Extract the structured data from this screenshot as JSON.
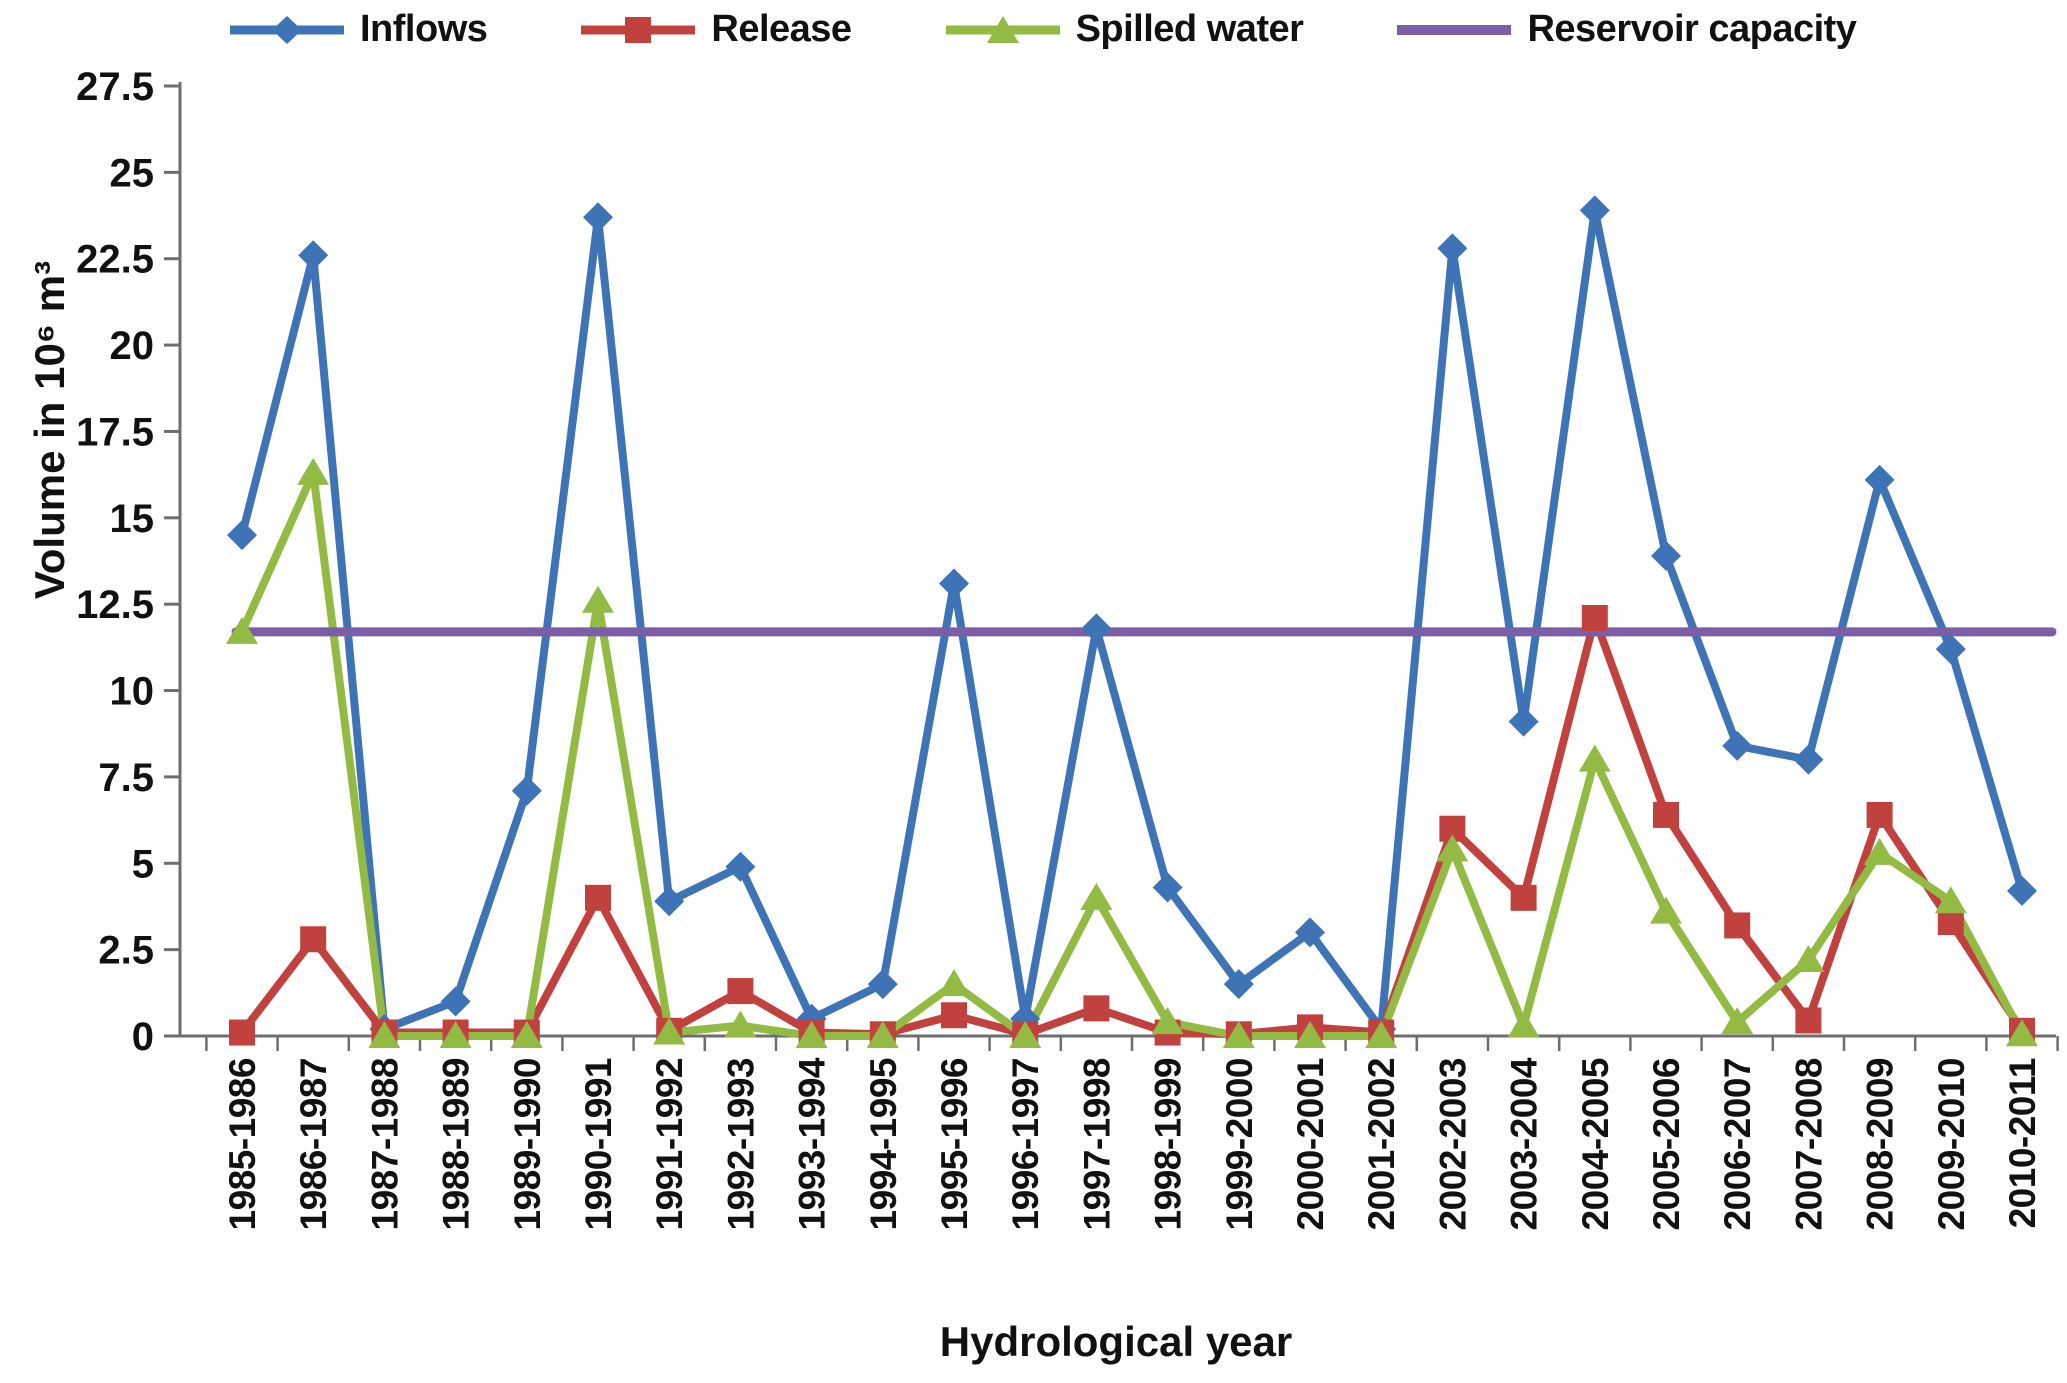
{
  "chart_data": {
    "type": "line",
    "title": "",
    "xlabel": "Hydrological year",
    "ylabel": "Volume in 10⁶ m³",
    "ylim": [
      0,
      27.5
    ],
    "y_ticks": [
      "0",
      "2.5",
      "5",
      "7.5",
      "10",
      "12.5",
      "15",
      "17.5",
      "20",
      "22.5",
      "25",
      "27.5"
    ],
    "grid": false,
    "legend_position": "top",
    "axis_color": "#6e6e6e",
    "text_color": "#111111",
    "categories": [
      "1985-1986",
      "1986-1987",
      "1987-1988",
      "1988-1989",
      "1989-1990",
      "1990-1991",
      "1991-1992",
      "1992-1993",
      "1993-1994",
      "1994-1995",
      "1995-1996",
      "1996-1997",
      "1997-1998",
      "1998-1999",
      "1999-2000",
      "2000-2001",
      "2001-2002",
      "2002-2003",
      "2003-2004",
      "2004-2005",
      "2005-2006",
      "2006-2007",
      "2007-2008",
      "2008-2009",
      "2009-2010",
      "2010-2011"
    ],
    "series": [
      {
        "name": "Inflows",
        "marker": "diamond",
        "color": "#3E74B5",
        "values": [
          14.5,
          22.6,
          0.2,
          1.0,
          7.1,
          23.7,
          3.9,
          4.9,
          0.5,
          1.5,
          13.1,
          0.5,
          11.8,
          4.3,
          1.5,
          3.0,
          0.2,
          22.8,
          9.1,
          23.9,
          13.9,
          8.4,
          8.0,
          16.1,
          11.2,
          4.2
        ]
      },
      {
        "name": "Release",
        "marker": "square",
        "color": "#C0413D",
        "values": [
          0.1,
          2.8,
          0.1,
          0.1,
          0.1,
          4.0,
          0.15,
          1.3,
          0.1,
          0.05,
          0.6,
          0.05,
          0.8,
          0.1,
          0.05,
          0.25,
          0.1,
          6.0,
          4.0,
          12.1,
          6.4,
          3.2,
          0.45,
          6.4,
          3.3,
          0.15
        ]
      },
      {
        "name": "Spilled water",
        "marker": "triangle",
        "color": "#93BB44",
        "values": [
          11.7,
          16.3,
          0,
          0,
          0,
          12.6,
          0.1,
          0.3,
          0,
          0,
          1.5,
          0,
          4.0,
          0.4,
          0,
          0,
          0,
          5.4,
          0.3,
          8.0,
          3.6,
          0.4,
          2.2,
          5.3,
          3.9,
          0.05
        ]
      },
      {
        "name": "Reservoir capacity",
        "marker": "none",
        "type": "hline",
        "color": "#7B5EA7",
        "value": 11.7
      }
    ]
  }
}
